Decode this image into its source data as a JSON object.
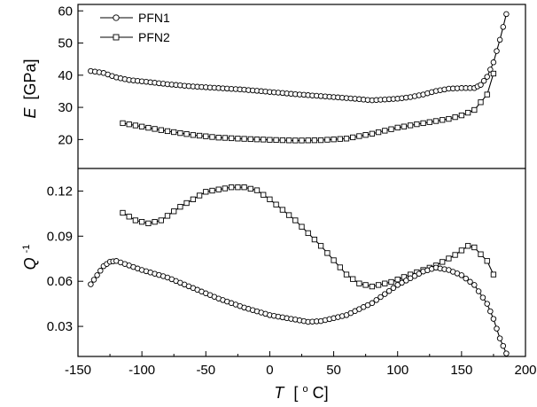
{
  "chart_data": {
    "type": "line",
    "x_axis": {
      "label_symbol": "T",
      "label_unit_open": "[",
      "label_unit_sup": "o",
      "label_unit_close": "C]",
      "range": [
        -150,
        200
      ],
      "ticks": [
        -150,
        -100,
        -50,
        0,
        50,
        100,
        150,
        200
      ],
      "tick_labels": [
        "-150",
        "-100",
        "-50",
        "0",
        "50",
        "100",
        "150",
        "200"
      ]
    },
    "top_axis": {
      "label_symbol": "E",
      "label_unit": "[GPa]",
      "range": [
        11,
        62
      ],
      "ticks": [
        20,
        30,
        40,
        50,
        60
      ],
      "tick_labels": [
        "20",
        "30",
        "40",
        "50",
        "60"
      ]
    },
    "bottom_axis": {
      "label_symbol": "Q",
      "label_sup": "-1",
      "range": [
        0.01,
        0.135
      ],
      "ticks": [
        0.03,
        0.06,
        0.09,
        0.12
      ],
      "tick_labels": [
        "0.03",
        "0.06",
        "0.09",
        "0.12"
      ]
    },
    "legend": {
      "placement": "top-left",
      "entries": [
        {
          "name": "PFN1",
          "marker": "circle"
        },
        {
          "name": "PFN2",
          "marker": "square"
        }
      ]
    },
    "series": [
      {
        "name": "PFN1",
        "panel": "E",
        "marker": "circle",
        "x": [
          -140,
          -130,
          -120,
          -110,
          -100,
          -80,
          -60,
          -40,
          -20,
          0,
          20,
          40,
          60,
          80,
          100,
          110,
          120,
          130,
          140,
          150,
          160,
          165,
          170,
          175,
          180,
          185
        ],
        "y": [
          41.3,
          40.7,
          39.3,
          38.5,
          38.1,
          37.2,
          36.5,
          36.0,
          35.5,
          34.8,
          34.1,
          33.5,
          32.9,
          32.2,
          32.7,
          33.2,
          34.0,
          35.1,
          35.8,
          36.0,
          36.0,
          37.0,
          39.5,
          44.0,
          51.0,
          59.0
        ]
      },
      {
        "name": "PFN2",
        "panel": "E",
        "marker": "square",
        "x": [
          -115,
          -100,
          -80,
          -60,
          -40,
          -20,
          0,
          20,
          40,
          60,
          80,
          100,
          120,
          140,
          150,
          160,
          170,
          175
        ],
        "y": [
          25.1,
          24.0,
          22.6,
          21.4,
          20.6,
          20.2,
          19.9,
          19.7,
          19.8,
          20.3,
          21.8,
          23.7,
          25.1,
          26.4,
          27.5,
          29.2,
          34.0,
          40.5
        ]
      },
      {
        "name": "PFN2",
        "panel": "Q",
        "marker": "square",
        "x": [
          -115,
          -105,
          -95,
          -85,
          -70,
          -50,
          -30,
          -20,
          -10,
          0,
          20,
          40,
          60,
          70,
          80,
          85,
          95,
          110,
          130,
          145,
          155,
          160,
          170,
          175
        ],
        "y": [
          0.1055,
          0.1005,
          0.0985,
          0.1005,
          0.1095,
          0.1195,
          0.1225,
          0.1225,
          0.1205,
          0.1145,
          0.1005,
          0.0835,
          0.0645,
          0.0585,
          0.0565,
          0.0575,
          0.0595,
          0.0645,
          0.0705,
          0.0775,
          0.0835,
          0.0825,
          0.0735,
          0.0645
        ]
      },
      {
        "name": "PFN1",
        "panel": "Q",
        "marker": "circle",
        "x": [
          -140,
          -135,
          -130,
          -125,
          -120,
          -110,
          -100,
          -80,
          -60,
          -40,
          -20,
          0,
          20,
          30,
          40,
          60,
          80,
          100,
          120,
          130,
          140,
          150,
          160,
          170,
          175,
          180,
          185
        ],
        "y": [
          0.058,
          0.064,
          0.07,
          0.073,
          0.0735,
          0.0705,
          0.0675,
          0.0625,
          0.0555,
          0.0485,
          0.0425,
          0.0375,
          0.0345,
          0.033,
          0.0335,
          0.0375,
          0.0455,
          0.0575,
          0.0665,
          0.069,
          0.0675,
          0.064,
          0.0575,
          0.045,
          0.035,
          0.022,
          0.012
        ]
      }
    ]
  }
}
